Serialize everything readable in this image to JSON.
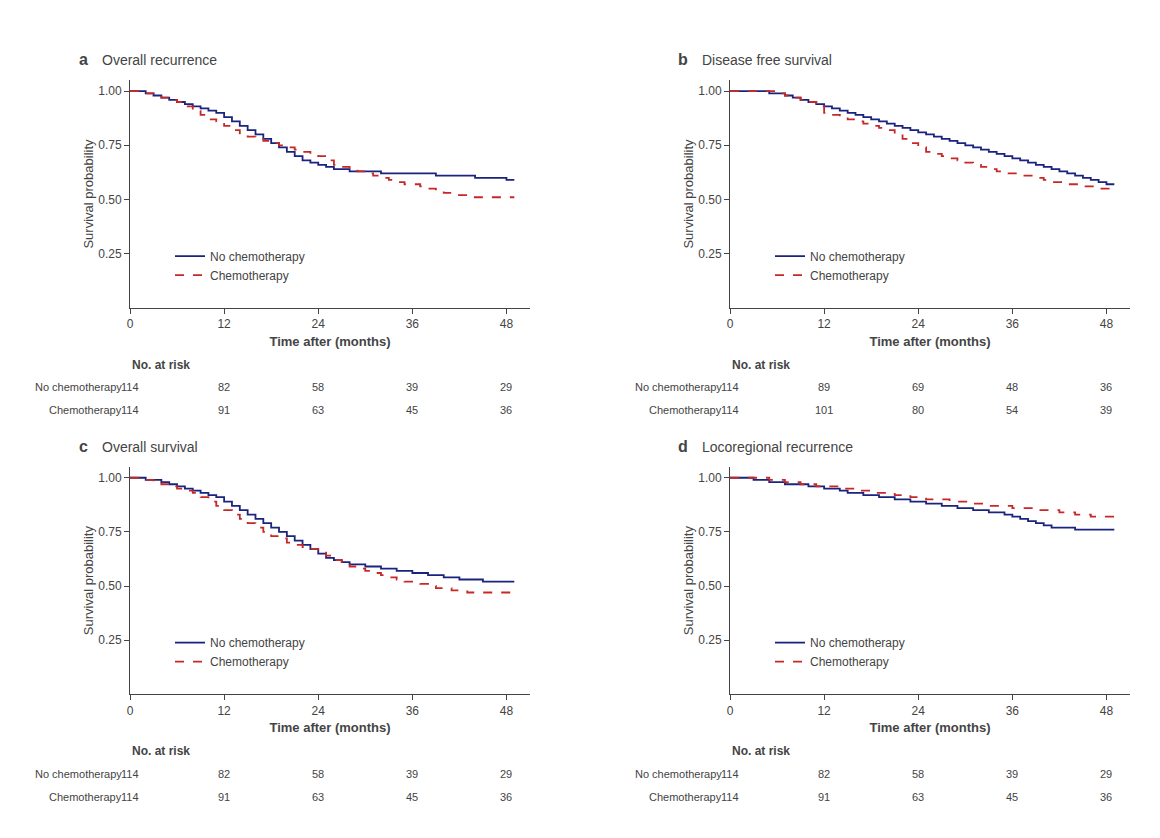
{
  "chart_data": [
    {
      "type": "line",
      "panel_label": "a",
      "title": "Overall recurrence",
      "xlabel": "Time after (months)",
      "ylabel": "Survival probability",
      "x": [
        0,
        1,
        2,
        3,
        4,
        5,
        6,
        7,
        8,
        9,
        10,
        11,
        12,
        13,
        14,
        15,
        16,
        17,
        18,
        19,
        20,
        21,
        22,
        23,
        24,
        25,
        26,
        27,
        28,
        29,
        30,
        31,
        32,
        33,
        34,
        35,
        36,
        37,
        38,
        39,
        40,
        41,
        42,
        43,
        44,
        45,
        46,
        47,
        48,
        49
      ],
      "series": [
        {
          "name": "No chemotherapy",
          "color": "#1a237e",
          "line_style": "solid",
          "values": [
            1.0,
            1.0,
            0.99,
            0.98,
            0.97,
            0.96,
            0.95,
            0.94,
            0.93,
            0.92,
            0.91,
            0.9,
            0.88,
            0.86,
            0.84,
            0.82,
            0.8,
            0.78,
            0.76,
            0.74,
            0.72,
            0.7,
            0.68,
            0.67,
            0.66,
            0.65,
            0.64,
            0.64,
            0.63,
            0.63,
            0.63,
            0.63,
            0.62,
            0.62,
            0.62,
            0.62,
            0.62,
            0.62,
            0.62,
            0.61,
            0.61,
            0.61,
            0.61,
            0.61,
            0.6,
            0.6,
            0.6,
            0.6,
            0.59,
            0.59
          ]
        },
        {
          "name": "Chemotherapy",
          "color": "#c62828",
          "line_style": "dashed",
          "values": [
            1.0,
            1.0,
            0.99,
            0.98,
            0.97,
            0.96,
            0.95,
            0.93,
            0.91,
            0.89,
            0.87,
            0.86,
            0.84,
            0.82,
            0.8,
            0.79,
            0.78,
            0.77,
            0.76,
            0.75,
            0.74,
            0.73,
            0.72,
            0.71,
            0.7,
            0.68,
            0.66,
            0.65,
            0.64,
            0.63,
            0.62,
            0.61,
            0.6,
            0.59,
            0.58,
            0.57,
            0.57,
            0.56,
            0.55,
            0.54,
            0.53,
            0.52,
            0.52,
            0.51,
            0.51,
            0.51,
            0.51,
            0.51,
            0.51,
            0.51
          ]
        }
      ],
      "xlim": [
        0,
        51
      ],
      "xticks": [
        0,
        12,
        24,
        36,
        48
      ],
      "ylim": [
        0.0,
        1.05
      ],
      "yticks": [
        0.25,
        {
          "value": 0.5,
          "label": "0.50"
        },
        0.75,
        {
          "value": 1.0,
          "label": "1.00"
        }
      ],
      "grid": false,
      "legend": "lower left",
      "risk_table": {
        "header": "No. at risk",
        "x": [
          0,
          12,
          24,
          36,
          48
        ],
        "rows": [
          {
            "name": "No chemotherapy",
            "values": [
              114,
              82,
              58,
              39,
              29
            ]
          },
          {
            "name": "Chemotherapy",
            "values": [
              114,
              91,
              63,
              45,
              36
            ]
          }
        ]
      }
    },
    {
      "type": "line",
      "panel_label": "b",
      "title": "Disease free survival",
      "xlabel": "Time after (months)",
      "ylabel": "Survival probability",
      "x": [
        0,
        1,
        2,
        3,
        4,
        5,
        6,
        7,
        8,
        9,
        10,
        11,
        12,
        13,
        14,
        15,
        16,
        17,
        18,
        19,
        20,
        21,
        22,
        23,
        24,
        25,
        26,
        27,
        28,
        29,
        30,
        31,
        32,
        33,
        34,
        35,
        36,
        37,
        38,
        39,
        40,
        41,
        42,
        43,
        44,
        45,
        46,
        47,
        48,
        49
      ],
      "series": [
        {
          "name": "No chemotherapy",
          "color": "#1a237e",
          "line_style": "solid",
          "values": [
            1.0,
            1.0,
            1.0,
            1.0,
            1.0,
            0.99,
            0.99,
            0.98,
            0.97,
            0.96,
            0.95,
            0.94,
            0.93,
            0.92,
            0.91,
            0.9,
            0.89,
            0.88,
            0.87,
            0.86,
            0.85,
            0.84,
            0.83,
            0.82,
            0.81,
            0.8,
            0.79,
            0.78,
            0.77,
            0.76,
            0.75,
            0.74,
            0.73,
            0.72,
            0.71,
            0.7,
            0.69,
            0.68,
            0.67,
            0.66,
            0.65,
            0.64,
            0.63,
            0.62,
            0.61,
            0.6,
            0.59,
            0.58,
            0.57,
            0.57
          ]
        },
        {
          "name": "Chemotherapy",
          "color": "#c62828",
          "line_style": "dashed",
          "values": [
            1.0,
            1.0,
            1.0,
            1.0,
            1.0,
            1.0,
            0.99,
            0.98,
            0.97,
            0.96,
            0.95,
            0.93,
            0.9,
            0.89,
            0.88,
            0.87,
            0.86,
            0.85,
            0.84,
            0.83,
            0.82,
            0.8,
            0.78,
            0.76,
            0.74,
            0.72,
            0.71,
            0.7,
            0.69,
            0.68,
            0.67,
            0.66,
            0.65,
            0.64,
            0.63,
            0.62,
            0.62,
            0.61,
            0.61,
            0.6,
            0.59,
            0.58,
            0.58,
            0.57,
            0.57,
            0.56,
            0.56,
            0.55,
            0.55,
            0.55
          ]
        }
      ],
      "xlim": [
        0,
        51
      ],
      "xticks": [
        0,
        12,
        24,
        36,
        48
      ],
      "ylim": [
        0.0,
        1.05
      ],
      "yticks": [
        0.25,
        {
          "value": 0.5,
          "label": "0.50"
        },
        0.75,
        {
          "value": 1.0,
          "label": "1.00"
        }
      ],
      "grid": false,
      "legend": "lower left",
      "risk_table": {
        "header": "No. at risk",
        "x": [
          0,
          12,
          24,
          36,
          48
        ],
        "rows": [
          {
            "name": "No chemotherapy",
            "values": [
              114,
              89,
              69,
              48,
              36
            ]
          },
          {
            "name": "Chemotherapy",
            "values": [
              114,
              101,
              80,
              54,
              39
            ]
          }
        ]
      }
    },
    {
      "type": "line",
      "panel_label": "c",
      "title": "Overall survival",
      "xlabel": "Time after (months)",
      "ylabel": "Survival probability",
      "x": [
        0,
        1,
        2,
        3,
        4,
        5,
        6,
        7,
        8,
        9,
        10,
        11,
        12,
        13,
        14,
        15,
        16,
        17,
        18,
        19,
        20,
        21,
        22,
        23,
        24,
        25,
        26,
        27,
        28,
        29,
        30,
        31,
        32,
        33,
        34,
        35,
        36,
        37,
        38,
        39,
        40,
        41,
        42,
        43,
        44,
        45,
        46,
        47,
        48,
        49
      ],
      "series": [
        {
          "name": "No chemotherapy",
          "color": "#1a237e",
          "line_style": "solid",
          "values": [
            1.0,
            1.0,
            0.99,
            0.99,
            0.98,
            0.97,
            0.96,
            0.95,
            0.94,
            0.93,
            0.92,
            0.91,
            0.89,
            0.87,
            0.85,
            0.83,
            0.81,
            0.79,
            0.77,
            0.75,
            0.73,
            0.71,
            0.69,
            0.67,
            0.65,
            0.63,
            0.62,
            0.61,
            0.6,
            0.6,
            0.59,
            0.59,
            0.58,
            0.58,
            0.57,
            0.57,
            0.56,
            0.56,
            0.55,
            0.55,
            0.54,
            0.54,
            0.53,
            0.53,
            0.53,
            0.52,
            0.52,
            0.52,
            0.52,
            0.52
          ]
        },
        {
          "name": "Chemotherapy",
          "color": "#c62828",
          "line_style": "dashed",
          "values": [
            1.0,
            1.0,
            0.99,
            0.98,
            0.97,
            0.96,
            0.95,
            0.94,
            0.93,
            0.91,
            0.89,
            0.87,
            0.85,
            0.83,
            0.81,
            0.79,
            0.77,
            0.75,
            0.73,
            0.72,
            0.7,
            0.69,
            0.68,
            0.67,
            0.66,
            0.64,
            0.62,
            0.61,
            0.59,
            0.58,
            0.57,
            0.56,
            0.55,
            0.54,
            0.53,
            0.52,
            0.52,
            0.51,
            0.5,
            0.49,
            0.49,
            0.48,
            0.48,
            0.47,
            0.47,
            0.47,
            0.47,
            0.47,
            0.47,
            0.47
          ]
        }
      ],
      "xlim": [
        0,
        51
      ],
      "xticks": [
        0,
        12,
        24,
        36,
        48
      ],
      "ylim": [
        0.0,
        1.05
      ],
      "yticks": [
        0.25,
        {
          "value": 0.5,
          "label": "0.50"
        },
        0.75,
        {
          "value": 1.0,
          "label": "1.00"
        }
      ],
      "grid": false,
      "legend": "lower left",
      "risk_table": {
        "header": "No. at risk",
        "x": [
          0,
          12,
          24,
          36,
          48
        ],
        "rows": [
          {
            "name": "No chemotherapy",
            "values": [
              114,
              82,
              58,
              39,
              29
            ]
          },
          {
            "name": "Chemotherapy",
            "values": [
              114,
              91,
              63,
              45,
              36
            ]
          }
        ]
      }
    },
    {
      "type": "line",
      "panel_label": "d",
      "title": "Locoregional recurrence",
      "xlabel": "Time after (months)",
      "ylabel": "Survival probability",
      "x": [
        0,
        1,
        2,
        3,
        4,
        5,
        6,
        7,
        8,
        9,
        10,
        11,
        12,
        13,
        14,
        15,
        16,
        17,
        18,
        19,
        20,
        21,
        22,
        23,
        24,
        25,
        26,
        27,
        28,
        29,
        30,
        31,
        32,
        33,
        34,
        35,
        36,
        37,
        38,
        39,
        40,
        41,
        42,
        43,
        44,
        45,
        46,
        47,
        48,
        49
      ],
      "series": [
        {
          "name": "No chemotherapy",
          "color": "#1a237e",
          "line_style": "solid",
          "values": [
            1.0,
            1.0,
            1.0,
            0.99,
            0.99,
            0.98,
            0.98,
            0.97,
            0.97,
            0.97,
            0.96,
            0.96,
            0.95,
            0.95,
            0.94,
            0.93,
            0.93,
            0.92,
            0.92,
            0.91,
            0.91,
            0.9,
            0.9,
            0.89,
            0.89,
            0.88,
            0.88,
            0.87,
            0.87,
            0.86,
            0.86,
            0.85,
            0.85,
            0.84,
            0.84,
            0.83,
            0.82,
            0.81,
            0.8,
            0.79,
            0.78,
            0.77,
            0.77,
            0.77,
            0.76,
            0.76,
            0.76,
            0.76,
            0.76,
            0.76
          ]
        },
        {
          "name": "Chemotherapy",
          "color": "#c62828",
          "line_style": "dashed",
          "values": [
            1.0,
            1.0,
            1.0,
            1.0,
            1.0,
            0.99,
            0.99,
            0.98,
            0.98,
            0.97,
            0.97,
            0.96,
            0.96,
            0.96,
            0.95,
            0.95,
            0.94,
            0.94,
            0.93,
            0.93,
            0.93,
            0.92,
            0.92,
            0.91,
            0.91,
            0.9,
            0.9,
            0.9,
            0.89,
            0.89,
            0.89,
            0.88,
            0.88,
            0.87,
            0.87,
            0.87,
            0.86,
            0.86,
            0.86,
            0.85,
            0.85,
            0.85,
            0.84,
            0.84,
            0.83,
            0.83,
            0.82,
            0.82,
            0.82,
            0.82
          ]
        }
      ],
      "xlim": [
        0,
        51
      ],
      "xticks": [
        0,
        12,
        24,
        36,
        48
      ],
      "ylim": [
        0.0,
        1.05
      ],
      "yticks": [
        0.25,
        {
          "value": 0.5,
          "label": "0.50"
        },
        0.75,
        {
          "value": 1.0,
          "label": "1.00"
        }
      ],
      "grid": false,
      "legend": "lower left",
      "risk_table": {
        "header": "No. at risk",
        "x": [
          0,
          12,
          24,
          36,
          48
        ],
        "rows": [
          {
            "name": "No chemotherapy",
            "values": [
              114,
              82,
              58,
              39,
              29
            ]
          },
          {
            "name": "Chemotherapy",
            "values": [
              114,
              91,
              63,
              45,
              36
            ]
          }
        ]
      }
    }
  ]
}
